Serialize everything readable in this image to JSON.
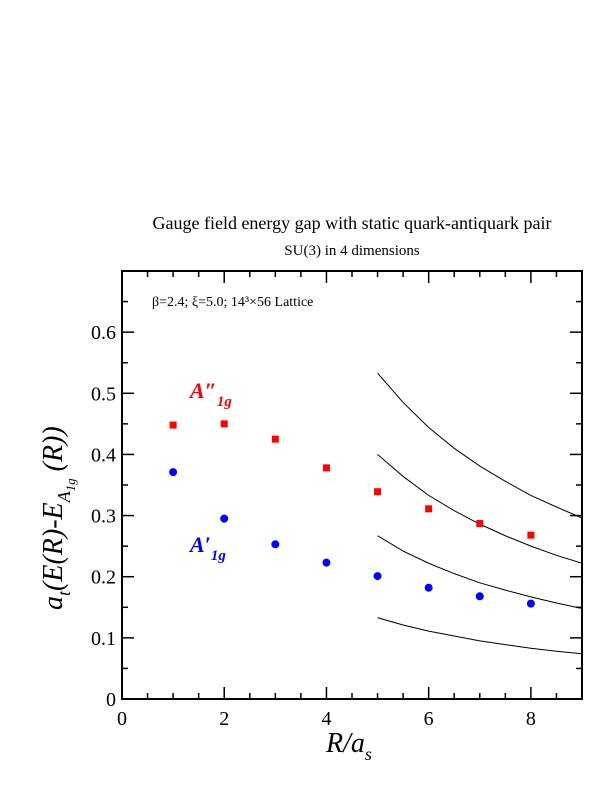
{
  "chart_data": {
    "type": "scatter",
    "title": "Gauge field energy gap with static quark-antiquark pair",
    "subtitle": "SU(3) in 4 dimensions",
    "annotation": "β=2.4; ξ=5.0; 14³×56 Lattice",
    "xlabel": "R/a_s",
    "ylabel": "a_t(E(R)-E_A1g(R))",
    "xlim": [
      0,
      9
    ],
    "ylim": [
      0,
      0.7
    ],
    "x_ticks": [
      "0",
      "2",
      "4",
      "6",
      "8"
    ],
    "y_ticks": [
      "0",
      "0.1",
      "0.2",
      "0.3",
      "0.4",
      "0.5",
      "0.6"
    ],
    "x_minor_step": 0.5,
    "y_minor_step": 0.05,
    "grid": false,
    "series": [
      {
        "name": "A″1g",
        "color": "#ff0000",
        "marker": "square",
        "x": [
          1,
          2,
          3,
          4,
          5,
          6,
          7,
          8
        ],
        "y": [
          0.448,
          0.45,
          0.425,
          0.378,
          0.339,
          0.311,
          0.287,
          0.268
        ],
        "err": [
          0.004,
          0.004,
          0.004,
          0.004,
          0.004,
          0.004,
          0.004,
          0.004
        ]
      },
      {
        "name": "A′1g",
        "color": "#0000ff",
        "marker": "circle",
        "x": [
          1,
          2,
          3,
          4,
          5,
          6,
          7,
          8
        ],
        "y": [
          0.371,
          0.295,
          0.253,
          0.223,
          0.201,
          0.182,
          0.168,
          0.156
        ],
        "err": [
          0.003,
          0.003,
          0.003,
          0.003,
          0.003,
          0.003,
          0.003,
          0.003
        ]
      }
    ],
    "curves": [
      {
        "color": "#000000",
        "x": [
          5,
          5.5,
          6,
          6.5,
          7,
          7.5,
          8,
          8.5,
          9
        ],
        "y": [
          0.533,
          0.485,
          0.444,
          0.41,
          0.381,
          0.356,
          0.333,
          0.314,
          0.296
        ]
      },
      {
        "color": "#000000",
        "x": [
          5,
          5.5,
          6,
          6.5,
          7,
          7.5,
          8,
          8.5,
          9
        ],
        "y": [
          0.4,
          0.364,
          0.333,
          0.308,
          0.286,
          0.267,
          0.25,
          0.235,
          0.222
        ]
      },
      {
        "color": "#000000",
        "x": [
          5,
          5.5,
          6,
          6.5,
          7,
          7.5,
          8,
          8.5,
          9
        ],
        "y": [
          0.267,
          0.242,
          0.222,
          0.205,
          0.19,
          0.178,
          0.167,
          0.157,
          0.148
        ]
      },
      {
        "color": "#000000",
        "x": [
          5,
          5.5,
          6,
          6.5,
          7,
          7.5,
          8,
          8.5,
          9
        ],
        "y": [
          0.133,
          0.121,
          0.111,
          0.103,
          0.095,
          0.089,
          0.083,
          0.078,
          0.074
        ]
      }
    ]
  }
}
